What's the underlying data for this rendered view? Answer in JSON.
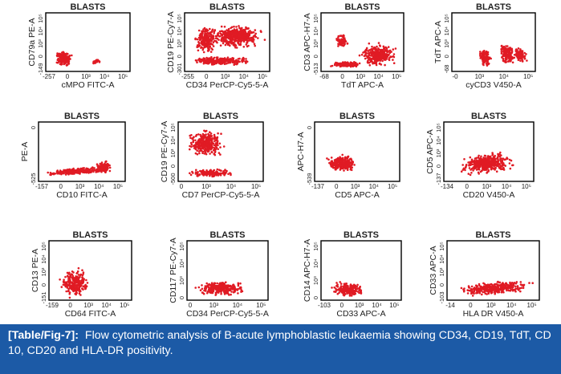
{
  "panels": [
    {
      "title": "BLASTS",
      "x_axis_label": "cMPO FITC-A",
      "y_axis_label": "CD79a PE-A",
      "x_ticks": [
        "-257",
        "0",
        "10³",
        "10⁴",
        "10⁵"
      ],
      "y_ticks": [
        "-149",
        "0",
        "10³",
        "10⁴",
        "10⁵"
      ]
    },
    {
      "title": "BLASTS",
      "x_axis_label": "CD34 PerCP-Cy5-5-A",
      "y_axis_label": "CD19 PE-Cy7-A",
      "x_ticks": [
        "-255",
        "0",
        "10³",
        "10⁴",
        "10⁵"
      ],
      "y_ticks": [
        "-301",
        "0",
        "10³",
        "10⁴",
        "10⁵"
      ]
    },
    {
      "title": "BLASTS",
      "x_axis_label": "TdT APC-A",
      "y_axis_label": "CD3 APC-H7-A",
      "x_ticks": [
        "-68",
        "0",
        "10³",
        "10⁴",
        "10⁵"
      ],
      "y_ticks": [
        "-513",
        "0",
        "10³",
        "10⁴",
        "10⁵"
      ]
    },
    {
      "title": "BLASTS",
      "x_axis_label": "cyCD3 V450-A",
      "y_axis_label": "TdT APC-A",
      "x_ticks": [
        "-0",
        "10³",
        "10⁴",
        "10⁵"
      ],
      "y_ticks": [
        "-68",
        "0",
        "10³",
        "10⁴",
        "10⁵"
      ]
    },
    {
      "title": "BLASTS",
      "x_axis_label": "CD10 FITC-A",
      "y_axis_label": "PE-A",
      "x_ticks": [
        "-157",
        "0",
        "10³",
        "10⁴",
        "10⁵"
      ],
      "y_ticks": [
        "-525",
        "0"
      ]
    },
    {
      "title": "BLASTS",
      "x_axis_label": "CD7 PerCP-Cy5-5-A",
      "y_axis_label": "CD19 PE-Cy7-A",
      "x_ticks": [
        "0",
        "10³",
        "10⁴",
        "10⁵"
      ],
      "y_ticks": [
        "-500",
        "0",
        "10³",
        "10⁴",
        "10⁵"
      ]
    },
    {
      "title": "BLASTS",
      "x_axis_label": "CD5 APC-A",
      "y_axis_label": "APC-H7-A",
      "x_ticks": [
        "-137",
        "0",
        "10³",
        "10⁴",
        "10⁵"
      ],
      "y_ticks": [
        "-539",
        "0"
      ]
    },
    {
      "title": "BLASTS",
      "x_axis_label": "CD20 V450-A",
      "y_axis_label": "CD5 APC-A",
      "x_ticks": [
        "-134",
        "0",
        "10³",
        "10⁴",
        "10⁵"
      ],
      "y_ticks": [
        "-137",
        "0",
        "10³",
        "10⁴",
        "10⁵"
      ]
    },
    {
      "title": "BLASTS",
      "x_axis_label": "CD64 FITC-A",
      "y_axis_label": "CD13 PE-A",
      "x_ticks": [
        "-159",
        "0",
        "10³",
        "10⁴",
        "10⁵"
      ],
      "y_ticks": [
        "-151",
        "0",
        "10³",
        "10⁴",
        "10⁵"
      ]
    },
    {
      "title": "BLASTS",
      "x_axis_label": "CD34 PerCP-Cy5-5-A",
      "y_axis_label": "CD117 PE-Cy7-A",
      "x_ticks": [
        "0",
        "10³",
        "10⁴",
        "10⁵"
      ],
      "y_ticks": [
        "0",
        "10³",
        "10⁴",
        "10⁵"
      ]
    },
    {
      "title": "BLASTS",
      "x_axis_label": "CD33 APC-A",
      "y_axis_label": "CD14 APC-H7-A",
      "x_ticks": [
        "-103",
        "0",
        "10³",
        "10⁴",
        "10⁵"
      ],
      "y_ticks": [
        "0",
        "10³",
        "10⁴",
        "10⁵"
      ]
    },
    {
      "title": "BLASTS",
      "x_axis_label": "HLA DR V450-A",
      "y_axis_label": "CD33 APC-A",
      "x_ticks": [
        "-14",
        "0",
        "10³",
        "10⁴",
        "10⁵"
      ],
      "y_ticks": [
        "-103",
        "0",
        "10³",
        "10⁴",
        "10⁵"
      ]
    }
  ],
  "caption": {
    "label": "[Table/Fig-7]:",
    "text": "Flow cytometric analysis of B-acute lymphoblastic leukaemia showing CD34, CD19, TdT, CD 10, CD20 and HLA-DR positivity."
  },
  "colors": {
    "dots": "#e01b24",
    "frame": "#000000",
    "caption_bg": "#1c5aa6"
  }
}
